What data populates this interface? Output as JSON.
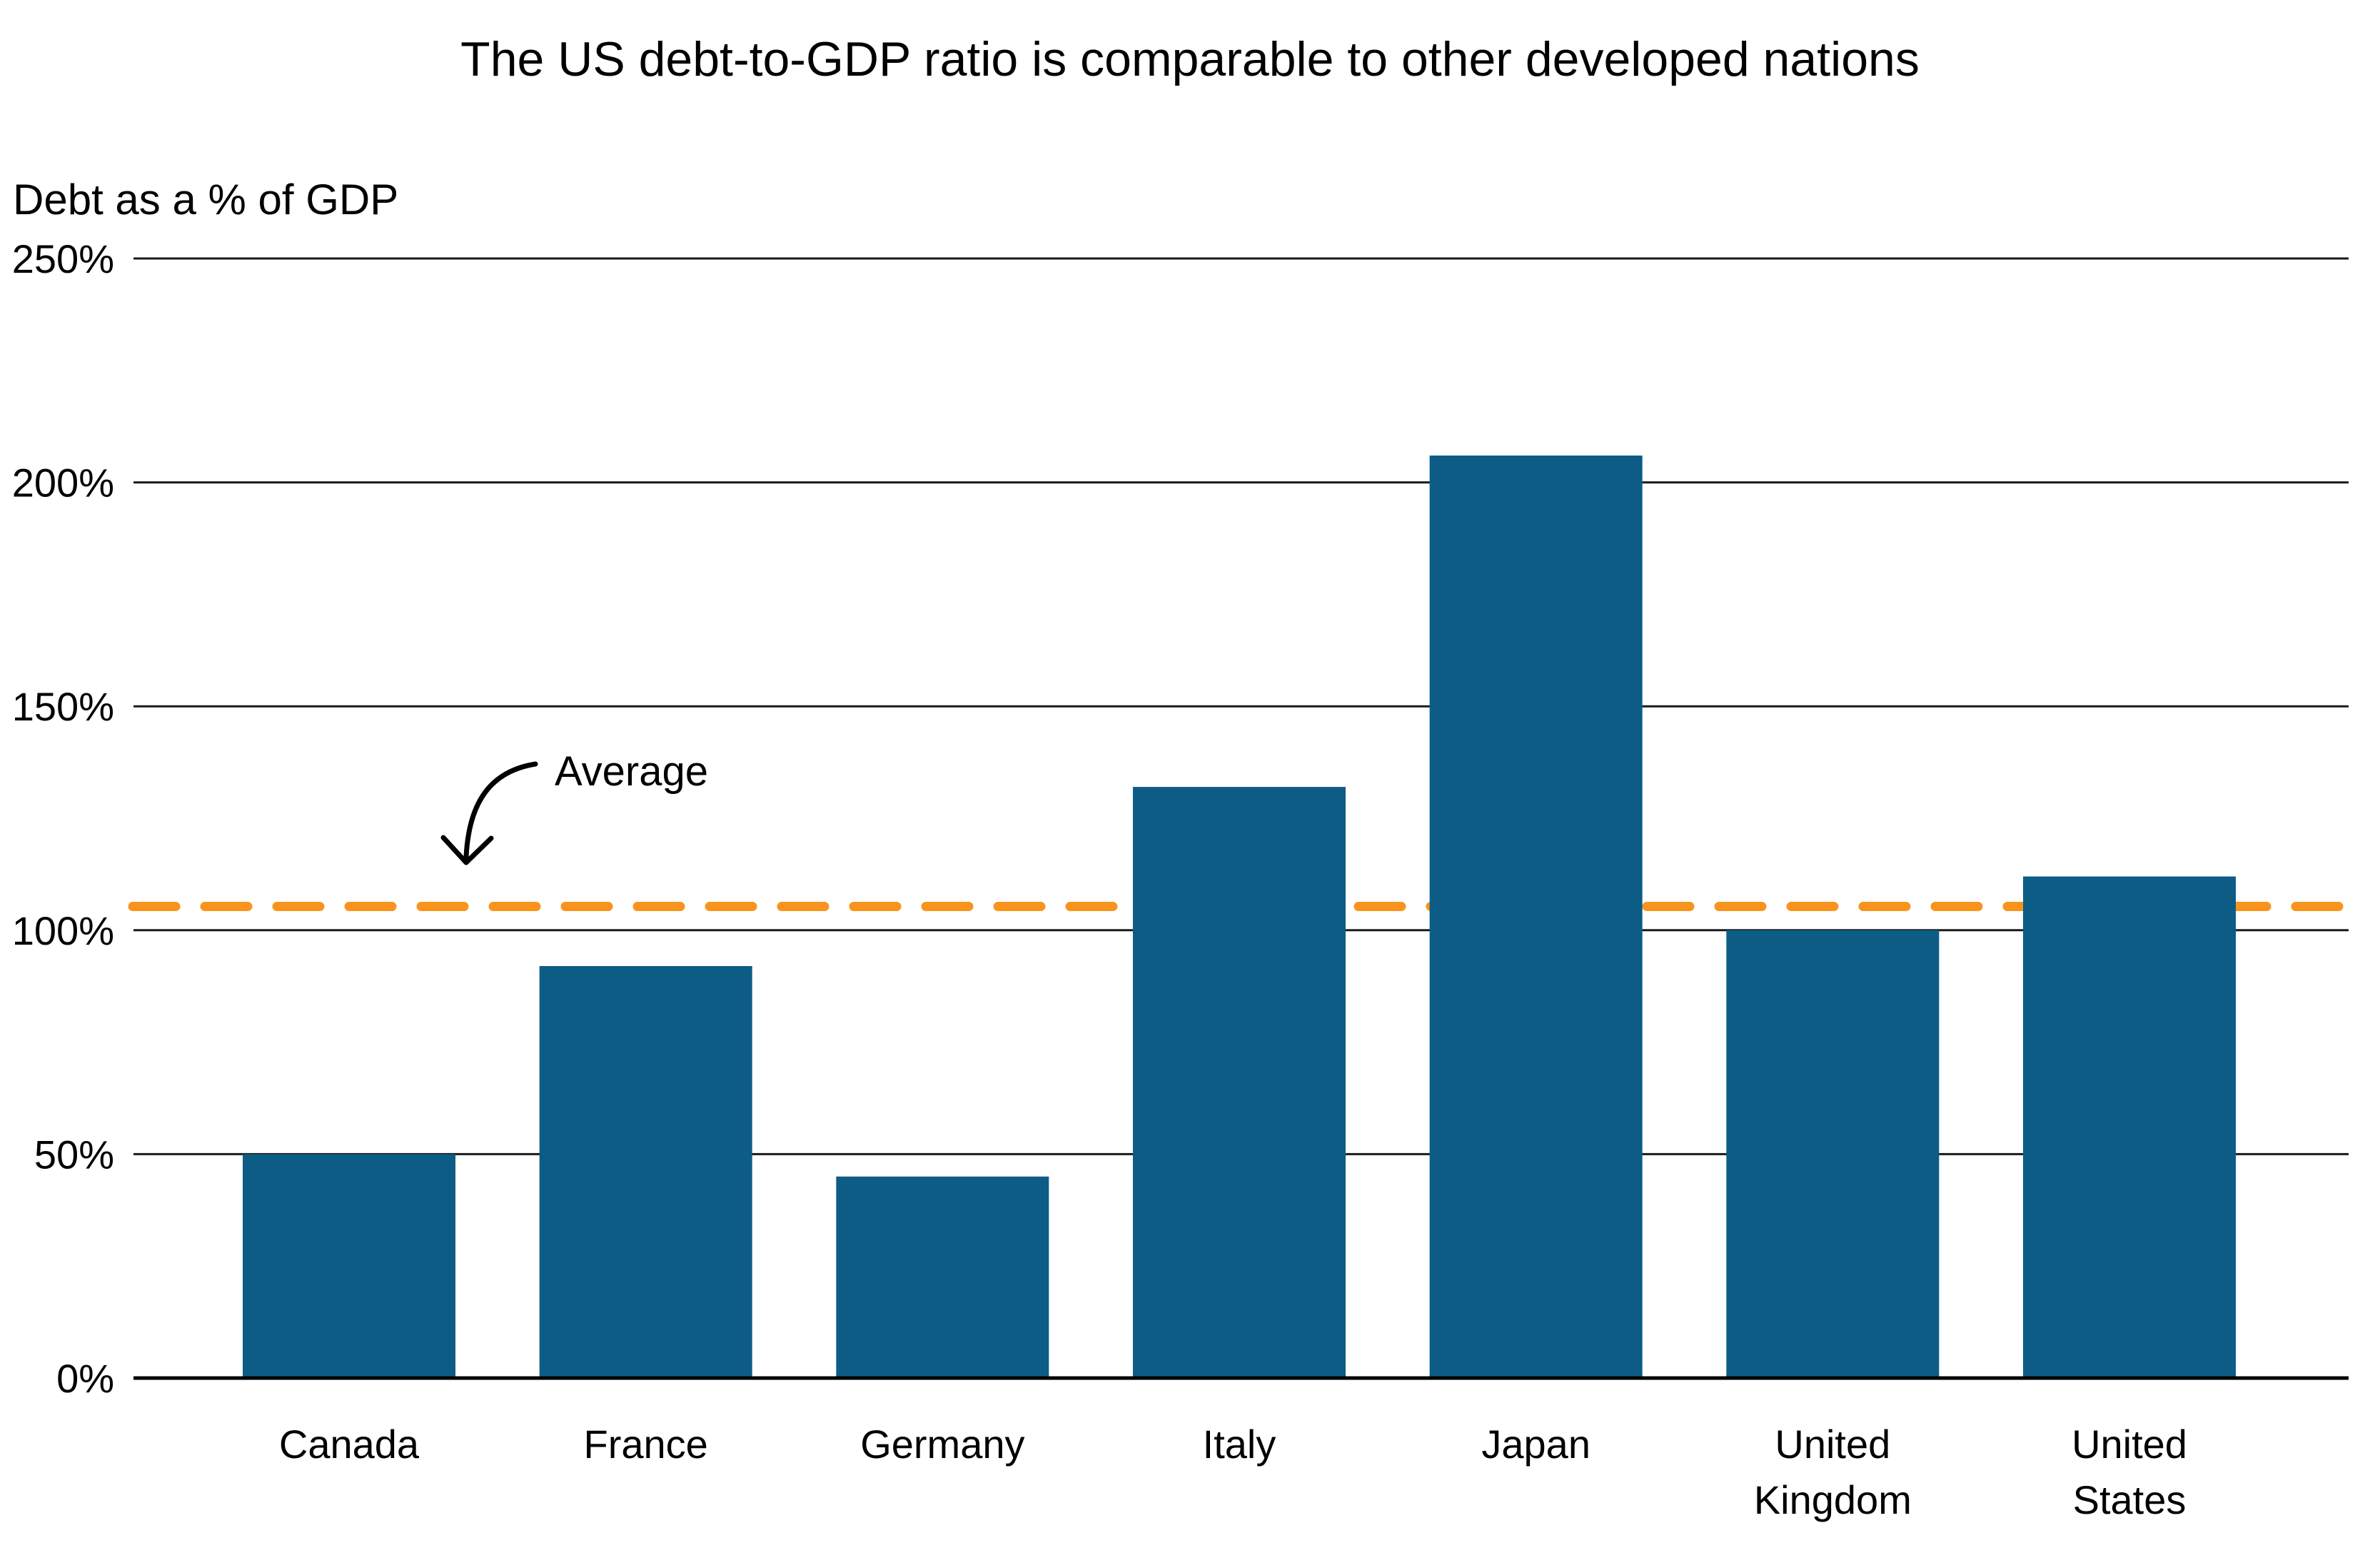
{
  "page": {
    "background": "#ffffff"
  },
  "header": {
    "title": "The US debt-to-GDP ratio is comparable to other developed nations",
    "y_axis_title": "Debt as a % of GDP"
  },
  "chart_data": {
    "type": "bar",
    "title": "The US debt-to-GDP ratio is comparable to other developed nations",
    "xlabel": "",
    "ylabel": "Debt as a % of GDP",
    "categories": [
      "Canada",
      "France",
      "Germany",
      "Italy",
      "Japan",
      "United Kingdom",
      "United States"
    ],
    "category_label_lines": [
      [
        "Canada"
      ],
      [
        "France"
      ],
      [
        "Germany"
      ],
      [
        "Italy"
      ],
      [
        "Japan"
      ],
      [
        "United",
        "Kingdom"
      ],
      [
        "United",
        "States"
      ]
    ],
    "values": [
      50,
      92,
      45,
      132,
      206,
      100,
      112
    ],
    "unit": "%",
    "ylim": [
      0,
      250
    ],
    "y_ticks": [
      0,
      50,
      100,
      150,
      200,
      250
    ],
    "y_tick_labels": [
      "0%",
      "50%",
      "100%",
      "150%",
      "200%",
      "250%"
    ],
    "grid": "horizontal",
    "legend": "none",
    "average": {
      "label": "Average",
      "value": 105.3,
      "style": "dashed"
    },
    "colors": {
      "bar": "#0D5C85",
      "average_line": "#F8941D",
      "text": "#000000",
      "gridline": "#1a1a1a",
      "background": "#ffffff"
    }
  }
}
